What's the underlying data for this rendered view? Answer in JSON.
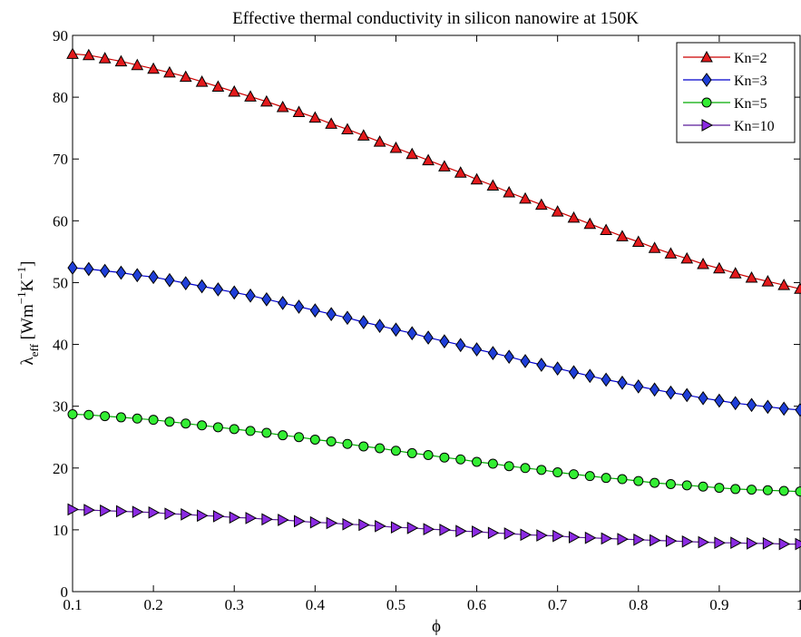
{
  "chart_data": {
    "type": "line",
    "title": "Effective thermal conductivity in silicon nanowire at 150K",
    "xlabel": "ϕ",
    "ylabel_symbol": "λ",
    "ylabel_subscript": "eff",
    "ylabel_units": " [Wm",
    "ylabel_exp1": "−1",
    "ylabel_units2": "K",
    "ylabel_exp2": "−1",
    "ylabel_close": "]",
    "xlim": [
      0.1,
      1
    ],
    "ylim": [
      0,
      90
    ],
    "x_ticks": [
      0.1,
      0.2,
      0.3,
      0.4,
      0.5,
      0.6,
      0.7,
      0.8,
      0.9,
      1
    ],
    "x_tick_labels": [
      "0.1",
      "0.2",
      "0.3",
      "0.4",
      "0.5",
      "0.6",
      "0.7",
      "0.8",
      "0.9",
      "1"
    ],
    "y_ticks": [
      0,
      10,
      20,
      30,
      40,
      50,
      60,
      70,
      80,
      90
    ],
    "y_tick_labels": [
      "0",
      "10",
      "20",
      "30",
      "40",
      "50",
      "60",
      "70",
      "80",
      "90"
    ],
    "grid": false,
    "legend_position": "top-right",
    "x": [
      0.1,
      0.12,
      0.14,
      0.16,
      0.18,
      0.2,
      0.22,
      0.24,
      0.26,
      0.28,
      0.3,
      0.32,
      0.34,
      0.36,
      0.38,
      0.4,
      0.42,
      0.44,
      0.46,
      0.48,
      0.5,
      0.52,
      0.54,
      0.56,
      0.58,
      0.6,
      0.62,
      0.64,
      0.66,
      0.68,
      0.7,
      0.72,
      0.74,
      0.76,
      0.78,
      0.8,
      0.82,
      0.84,
      0.86,
      0.88,
      0.9,
      0.92,
      0.94,
      0.96,
      0.98,
      1.0
    ],
    "series": [
      {
        "name": "Kn=2",
        "marker": "triangle-up",
        "face_color": "#e41a1c",
        "line_color": "#cc0000",
        "values": [
          87.0,
          86.8,
          86.3,
          85.8,
          85.2,
          84.6,
          84.0,
          83.3,
          82.5,
          81.7,
          80.9,
          80.1,
          79.3,
          78.4,
          77.6,
          76.7,
          75.7,
          74.8,
          73.8,
          72.8,
          71.8,
          70.8,
          69.8,
          68.8,
          67.8,
          66.7,
          65.7,
          64.6,
          63.6,
          62.6,
          61.5,
          60.5,
          59.5,
          58.5,
          57.5,
          56.6,
          55.6,
          54.7,
          53.9,
          53.0,
          52.3,
          51.5,
          50.8,
          50.2,
          49.6,
          49.0
        ]
      },
      {
        "name": "Kn=3",
        "marker": "diamond",
        "face_color": "#1f3fd8",
        "line_color": "#0000cc",
        "values": [
          52.4,
          52.2,
          51.9,
          51.6,
          51.2,
          50.9,
          50.4,
          49.9,
          49.4,
          48.9,
          48.4,
          47.9,
          47.3,
          46.7,
          46.1,
          45.5,
          44.9,
          44.3,
          43.6,
          43.0,
          42.4,
          41.8,
          41.1,
          40.5,
          39.9,
          39.2,
          38.6,
          38.0,
          37.3,
          36.7,
          36.1,
          35.5,
          34.9,
          34.3,
          33.8,
          33.2,
          32.7,
          32.2,
          31.8,
          31.3,
          30.9,
          30.5,
          30.2,
          29.9,
          29.6,
          29.4
        ]
      },
      {
        "name": "Kn=5",
        "marker": "circle",
        "face_color": "#33ee33",
        "line_color": "#00aa00",
        "values": [
          28.7,
          28.6,
          28.4,
          28.2,
          28.0,
          27.8,
          27.5,
          27.2,
          26.9,
          26.6,
          26.3,
          26.0,
          25.7,
          25.3,
          25.0,
          24.6,
          24.3,
          23.9,
          23.5,
          23.2,
          22.8,
          22.4,
          22.1,
          21.7,
          21.4,
          21.0,
          20.7,
          20.3,
          20.0,
          19.7,
          19.3,
          19.0,
          18.7,
          18.4,
          18.2,
          17.9,
          17.6,
          17.4,
          17.2,
          17.0,
          16.8,
          16.6,
          16.5,
          16.4,
          16.3,
          16.2
        ]
      },
      {
        "name": "Kn=10",
        "marker": "triangle-right",
        "face_color": "#8b2be2",
        "line_color": "#5a1a9a",
        "values": [
          13.3,
          13.2,
          13.1,
          13.0,
          12.9,
          12.8,
          12.6,
          12.5,
          12.3,
          12.2,
          12.0,
          11.9,
          11.7,
          11.6,
          11.4,
          11.2,
          11.1,
          10.9,
          10.8,
          10.6,
          10.4,
          10.3,
          10.1,
          10.0,
          9.8,
          9.7,
          9.5,
          9.4,
          9.2,
          9.1,
          9.0,
          8.8,
          8.7,
          8.6,
          8.5,
          8.4,
          8.3,
          8.2,
          8.1,
          8.0,
          7.9,
          7.9,
          7.8,
          7.8,
          7.7,
          7.7
        ]
      }
    ]
  }
}
